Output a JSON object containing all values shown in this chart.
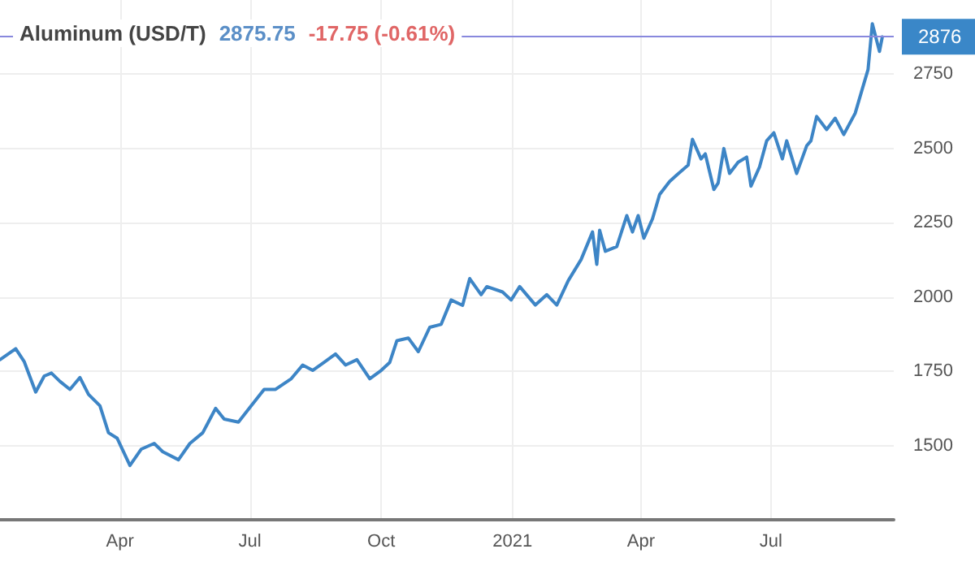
{
  "chart_data": {
    "type": "line",
    "title": "Aluminum (USD/T)",
    "annotations": [
      "2875.75",
      "-17.75 (-0.61%)"
    ],
    "x": [
      "2020-01-08",
      "2020-01-19",
      "2020-01-25",
      "2020-02-02",
      "2020-02-08",
      "2020-02-13",
      "2020-02-19",
      "2020-02-26",
      "2020-03-04",
      "2020-03-10",
      "2020-03-18",
      "2020-03-24",
      "2020-03-30",
      "2020-04-08",
      "2020-04-16",
      "2020-04-25",
      "2020-05-01",
      "2020-05-12",
      "2020-05-20",
      "2020-05-29",
      "2020-06-07",
      "2020-06-13",
      "2020-06-23",
      "2020-07-02",
      "2020-07-11",
      "2020-07-19",
      "2020-07-30",
      "2020-08-07",
      "2020-08-14",
      "2020-08-22",
      "2020-08-30",
      "2020-09-06",
      "2020-09-14",
      "2020-09-23",
      "2020-10-01",
      "2020-10-07",
      "2020-10-12",
      "2020-10-20",
      "2020-10-27",
      "2020-11-04",
      "2020-11-12",
      "2020-11-19",
      "2020-11-27",
      "2020-12-02",
      "2020-12-10",
      "2020-12-14",
      "2020-12-25",
      "2020-12-31",
      "2021-01-06",
      "2021-01-17",
      "2021-01-25",
      "2021-02-01",
      "2021-02-09",
      "2021-02-18",
      "2021-02-26",
      "2021-03-01",
      "2021-03-03",
      "2021-03-07",
      "2021-03-15",
      "2021-03-22",
      "2021-03-26",
      "2021-03-30",
      "2021-04-03",
      "2021-04-09",
      "2021-04-14",
      "2021-04-21",
      "2021-04-26",
      "2021-05-04",
      "2021-05-07",
      "2021-05-13",
      "2021-05-16",
      "2021-05-22",
      "2021-05-25",
      "2021-05-29",
      "2021-06-02",
      "2021-06-08",
      "2021-06-14",
      "2021-06-17",
      "2021-06-23",
      "2021-06-28",
      "2021-07-03",
      "2021-07-09",
      "2021-07-12",
      "2021-07-19",
      "2021-07-26",
      "2021-07-29",
      "2021-08-02",
      "2021-08-09",
      "2021-08-15",
      "2021-08-21",
      "2021-08-29",
      "2021-09-03",
      "2021-09-07",
      "2021-09-10",
      "2021-09-15",
      "2021-09-17"
    ],
    "series": [
      {
        "color": "#3d85c6",
        "values": [
          1789,
          1826,
          1782,
          1680,
          1734,
          1744,
          1716,
          1689,
          1729,
          1672,
          1634,
          1543,
          1525,
          1433,
          1488,
          1507,
          1479,
          1452,
          1507,
          1543,
          1625,
          1589,
          1579,
          1634,
          1689,
          1689,
          1725,
          1771,
          1753,
          1780,
          1808,
          1771,
          1789,
          1725,
          1753,
          1780,
          1853,
          1862,
          1816,
          1898,
          1908,
          1990,
          1972,
          2062,
          2008,
          2035,
          2017,
          1990,
          2035,
          1973,
          2008,
          1973,
          2055,
          2126,
          2219,
          2110,
          2225,
          2154,
          2170,
          2274,
          2219,
          2274,
          2198,
          2263,
          2345,
          2389,
          2411,
          2444,
          2531,
          2465,
          2482,
          2362,
          2384,
          2500,
          2416,
          2454,
          2471,
          2373,
          2438,
          2526,
          2553,
          2465,
          2526,
          2416,
          2509,
          2526,
          2608,
          2564,
          2602,
          2547,
          2619,
          2701,
          2766,
          2920,
          2827,
          2876
        ]
      }
    ],
    "xlim": [
      "2020-01-08",
      "2021-09-25"
    ],
    "xticks": [
      {
        "value": "2020-04-01",
        "label": "Apr"
      },
      {
        "value": "2020-07-01",
        "label": "Jul"
      },
      {
        "value": "2020-10-01",
        "label": "Oct"
      },
      {
        "value": "2021-01-01",
        "label": "2021"
      },
      {
        "value": "2021-04-01",
        "label": "Apr"
      },
      {
        "value": "2021-07-01",
        "label": "Jul"
      }
    ],
    "ylim": [
      1250,
      3000
    ],
    "yticks": [
      1500,
      1750,
      2000,
      2250,
      2500,
      2750
    ],
    "ref_lines": [
      {
        "axis": "y",
        "value": 2876,
        "label": "2876",
        "color": "#8888dd"
      }
    ],
    "grid": true,
    "marker": "none",
    "line_style": "solid"
  }
}
